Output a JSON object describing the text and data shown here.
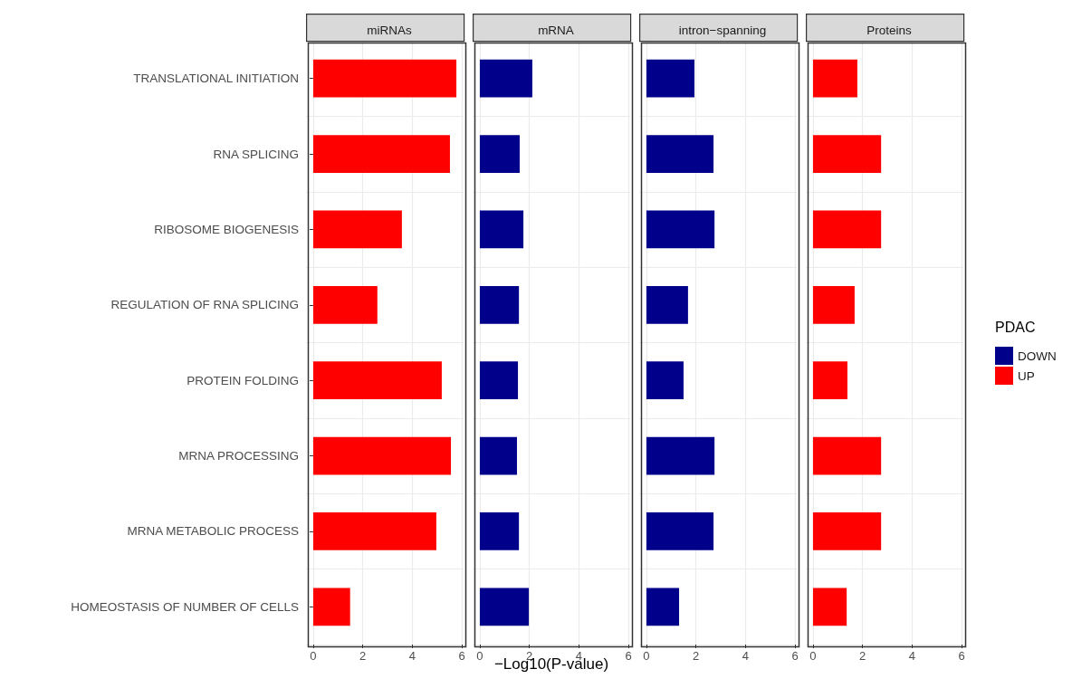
{
  "chart_data": [
    {
      "type": "bar",
      "orientation": "horizontal",
      "stacked": true,
      "title": "miRNAs",
      "categories": [
        "TRANSLATIONAL INITIATION",
        "RNA SPLICING",
        "RIBOSOME BIOGENESIS",
        "REGULATION OF RNA SPLICING",
        "PROTEIN FOLDING",
        "MRNA PROCESSING",
        "MRNA METABOLIC PROCESS",
        "HOMEOSTASIS OF NUMBER OF CELLS"
      ],
      "xlim": [
        -0.29,
        6.07
      ],
      "xticks": [
        0,
        2,
        4,
        6
      ],
      "grid": true,
      "legend": false,
      "series": [
        {
          "color": "#00008b",
          "values": [
            null,
            null,
            null,
            null,
            null,
            null,
            null,
            null
          ]
        },
        {
          "color": "#ff0000",
          "values": [
            5.78,
            5.52,
            3.58,
            2.59,
            5.19,
            5.56,
            4.97,
            1.49
          ]
        }
      ]
    },
    {
      "type": "bar",
      "orientation": "horizontal",
      "stacked": true,
      "title": "mRNA",
      "xlabel": "−Log10(P-value)",
      "categories": [
        null,
        null,
        null,
        null,
        null,
        null,
        null,
        null
      ],
      "xlim": [
        -0.29,
        6.07
      ],
      "xticks": [
        0,
        2,
        4,
        6
      ],
      "grid": true,
      "legend": false,
      "tick_labels": "x",
      "series": [
        {
          "color": "#00008b",
          "values": [
            2.12,
            1.61,
            1.76,
            1.58,
            1.54,
            1.5,
            1.58,
            1.98
          ]
        },
        {
          "color": "#ff0000",
          "values": [
            null,
            null,
            null,
            null,
            null,
            null,
            null,
            null
          ]
        }
      ]
    },
    {
      "type": "bar",
      "orientation": "horizontal",
      "stacked": true,
      "title": "intron−spanning",
      "categories": [
        null,
        null,
        null,
        null,
        null,
        null,
        null,
        null
      ],
      "xlim": [
        -0.29,
        6.07
      ],
      "xticks": [
        0,
        2,
        4,
        6
      ],
      "grid": true,
      "legend": false,
      "tick_labels": "x",
      "series": [
        {
          "color": "#00008b",
          "values": [
            1.94,
            2.71,
            2.75,
            1.68,
            1.5,
            2.75,
            2.71,
            1.32
          ]
        },
        {
          "color": "#ff0000",
          "values": [
            null,
            null,
            null,
            null,
            null,
            null,
            null,
            null
          ]
        }
      ]
    },
    {
      "type": "bar",
      "orientation": "horizontal",
      "stacked": true,
      "title": "Proteins",
      "legend_title": "PDAC",
      "categories": [
        null,
        null,
        null,
        null,
        null,
        null,
        null,
        null
      ],
      "xlim": [
        -0.29,
        6.07
      ],
      "xticks": [
        0,
        2,
        4,
        6
      ],
      "grid": true,
      "legend": "right",
      "tick_labels": "x",
      "series": [
        {
          "name": "DOWN",
          "color": "#00008b",
          "values": [
            null,
            null,
            null,
            null,
            null,
            null,
            null,
            null
          ]
        },
        {
          "name": "UP",
          "color": "#ff0000",
          "values": [
            1.79,
            2.75,
            2.75,
            1.68,
            1.39,
            2.75,
            2.75,
            1.36
          ]
        }
      ]
    }
  ]
}
